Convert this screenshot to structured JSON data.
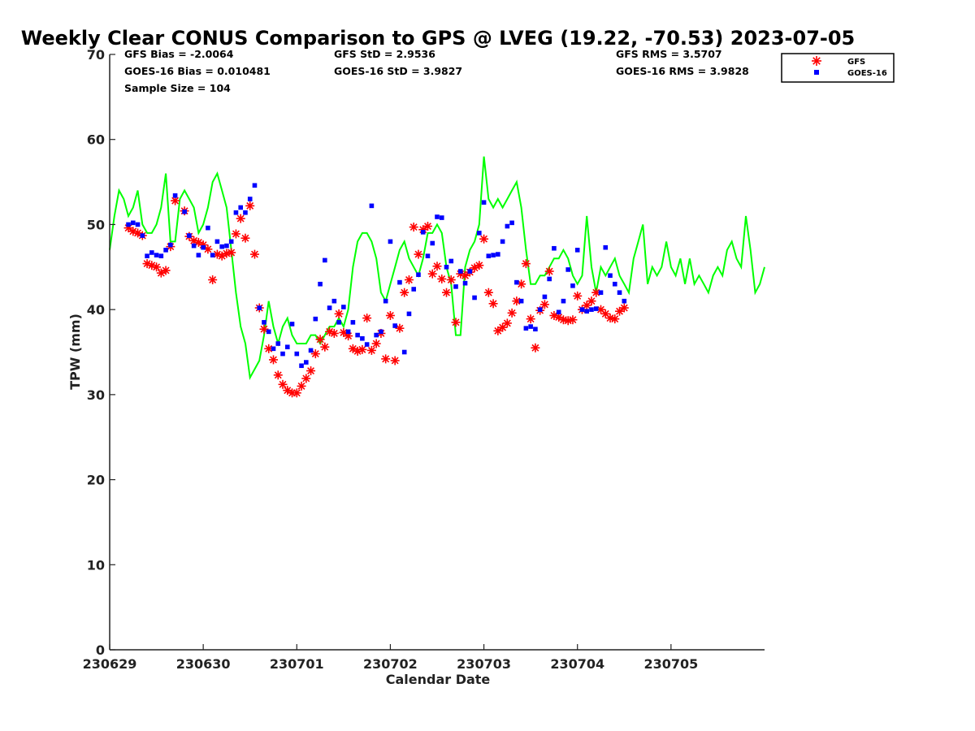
{
  "chart_data": {
    "type": "scatter",
    "title": "Weekly Clear CONUS Comparison to GPS @ LVEG (19.22, -70.53) 2023-07-05",
    "xlabel": "Calendar Date",
    "ylabel": "TPW (mm)",
    "xlim": [
      0,
      7.0
    ],
    "ylim": [
      0,
      70
    ],
    "x_ticks": [
      0,
      1,
      2,
      3,
      4,
      5,
      6
    ],
    "x_tick_labels": [
      "230629",
      "230630",
      "230701",
      "230702",
      "230703",
      "230704",
      "230705"
    ],
    "y_ticks": [
      0,
      10,
      20,
      30,
      40,
      50,
      60,
      70
    ],
    "y_tick_labels": [
      "0",
      "10",
      "20",
      "30",
      "40",
      "50",
      "60",
      "70"
    ],
    "legend_position": "top-right",
    "stats": {
      "gfs_bias": "GFS Bias = -2.0064",
      "goes_bias": "GOES-16 Bias = 0.010481",
      "sample_size": "Sample Size = 104",
      "gfs_std": "GFS StD = 2.9536",
      "goes_std": "GOES-16 StD = 3.9827",
      "gfs_rms": "GFS RMS = 3.5707",
      "goes_rms": "GOES-16 RMS = 3.9828"
    },
    "series": [
      {
        "name": "GPS",
        "kind": "line",
        "color": "#00ff00",
        "x": [
          0.0,
          0.05,
          0.1,
          0.15,
          0.2,
          0.25,
          0.3,
          0.35,
          0.4,
          0.45,
          0.5,
          0.55,
          0.6,
          0.65,
          0.7,
          0.75,
          0.8,
          0.85,
          0.9,
          0.95,
          1.0,
          1.05,
          1.1,
          1.15,
          1.2,
          1.25,
          1.3,
          1.35,
          1.4,
          1.45,
          1.5,
          1.55,
          1.6,
          1.65,
          1.7,
          1.75,
          1.8,
          1.85,
          1.9,
          1.95,
          2.0,
          2.05,
          2.1,
          2.15,
          2.2,
          2.25,
          2.3,
          2.35,
          2.4,
          2.45,
          2.5,
          2.55,
          2.6,
          2.65,
          2.7,
          2.75,
          2.8,
          2.85,
          2.9,
          2.95,
          3.0,
          3.05,
          3.1,
          3.15,
          3.2,
          3.25,
          3.3,
          3.35,
          3.4,
          3.45,
          3.5,
          3.55,
          3.6,
          3.65,
          3.7,
          3.75,
          3.8,
          3.85,
          3.9,
          3.95,
          4.0,
          4.05,
          4.1,
          4.15,
          4.2,
          4.25,
          4.3,
          4.35,
          4.4,
          4.45,
          4.5,
          4.55,
          4.6,
          4.65,
          4.7,
          4.75,
          4.8,
          4.85,
          4.9,
          4.95,
          5.0,
          5.05,
          5.1,
          5.15,
          5.2,
          5.25,
          5.3,
          5.35,
          5.4,
          5.45,
          5.5,
          5.55,
          5.6,
          5.65,
          5.7,
          5.75,
          5.8,
          5.85,
          5.9,
          5.95,
          6.0,
          6.05,
          6.1,
          6.15,
          6.2,
          6.25,
          6.3,
          6.35,
          6.4,
          6.45,
          6.5,
          6.55,
          6.6,
          6.65,
          6.7,
          6.75,
          6.8,
          6.85,
          6.9,
          6.95,
          7.0
        ],
        "values": [
          47,
          51,
          54,
          53,
          51,
          52,
          54,
          50,
          49,
          49,
          50,
          52,
          56,
          48,
          48,
          53,
          54,
          53,
          52,
          49,
          50,
          52,
          55,
          56,
          54,
          52,
          47,
          42,
          38,
          36,
          32,
          33,
          34,
          37,
          41,
          38,
          36,
          38,
          39,
          37,
          36,
          36,
          36,
          37,
          37,
          36,
          37,
          38,
          38,
          39,
          38,
          40,
          45,
          48,
          49,
          49,
          48,
          46,
          42,
          41,
          43,
          45,
          47,
          48,
          46,
          45,
          44,
          46,
          49,
          49,
          50,
          49,
          45,
          43,
          37,
          37,
          45,
          47,
          48,
          50,
          58,
          53,
          52,
          53,
          52,
          53,
          54,
          55,
          52,
          47,
          43,
          43,
          44,
          44,
          45,
          46,
          46,
          47,
          46,
          44,
          43,
          44,
          51,
          45,
          42,
          45,
          44,
          45,
          46,
          44,
          43,
          42,
          46,
          48,
          50,
          43,
          45,
          44,
          45,
          48,
          45,
          44,
          46,
          43,
          46,
          43,
          44,
          43,
          42,
          44,
          45,
          44,
          47,
          48,
          46,
          45,
          51,
          47,
          42,
          43,
          45
        ]
      },
      {
        "name": "GFS",
        "kind": "marker",
        "marker": "asterisk",
        "color": "#ff0000",
        "x": [
          0.2,
          0.25,
          0.3,
          0.35,
          0.4,
          0.45,
          0.5,
          0.55,
          0.6,
          0.65,
          0.7,
          0.8,
          0.85,
          0.9,
          0.95,
          1.0,
          1.05,
          1.1,
          1.15,
          1.2,
          1.25,
          1.3,
          1.35,
          1.4,
          1.45,
          1.5,
          1.55,
          1.6,
          1.65,
          1.7,
          1.75,
          1.8,
          1.85,
          1.9,
          1.95,
          2.0,
          2.05,
          2.1,
          2.15,
          2.2,
          2.25,
          2.3,
          2.35,
          2.4,
          2.45,
          2.5,
          2.55,
          2.6,
          2.65,
          2.7,
          2.75,
          2.8,
          2.85,
          2.9,
          2.95,
          3.0,
          3.05,
          3.1,
          3.15,
          3.2,
          3.25,
          3.3,
          3.35,
          3.4,
          3.45,
          3.5,
          3.55,
          3.6,
          3.65,
          3.7,
          3.75,
          3.8,
          3.85,
          3.9,
          3.95,
          4.0,
          4.05,
          4.1,
          4.15,
          4.2,
          4.25,
          4.3,
          4.35,
          4.4,
          4.45,
          4.5,
          4.55,
          4.6,
          4.65,
          4.7,
          4.75,
          4.8,
          4.85,
          4.9,
          4.95,
          5.0,
          5.05,
          5.1,
          5.15,
          5.2,
          5.25,
          5.3,
          5.35,
          5.4,
          5.45,
          5.5
        ],
        "values": [
          49.6,
          49.2,
          49.0,
          48.7,
          45.4,
          45.2,
          45.0,
          44.3,
          44.6,
          47.4,
          52.8,
          51.6,
          48.6,
          48.1,
          47.9,
          47.6,
          47.1,
          43.5,
          46.5,
          46.3,
          46.6,
          46.7,
          48.9,
          50.7,
          48.4,
          52.2,
          46.5,
          40.2,
          37.7,
          35.4,
          34.1,
          32.3,
          31.2,
          30.5,
          30.2,
          30.2,
          31.0,
          31.9,
          32.8,
          34.8,
          36.5,
          35.6,
          37.4,
          37.2,
          39.5,
          37.3,
          36.9,
          35.4,
          35.1,
          35.3,
          39.0,
          35.2,
          36.0,
          37.2,
          34.2,
          39.3,
          34.0,
          37.8,
          42.0,
          43.5,
          49.7,
          46.5,
          49.4,
          49.8,
          44.2,
          45.1,
          43.6,
          42.0,
          43.5,
          38.5,
          44.2,
          44.0,
          44.4,
          44.9,
          45.2,
          48.3,
          42.0,
          40.7,
          37.5,
          37.9,
          38.4,
          39.6,
          41.0,
          43.0,
          45.4,
          38.9,
          35.5,
          39.9,
          40.6,
          44.5,
          39.3,
          39.1,
          38.8,
          38.7,
          38.8,
          41.6,
          40.0,
          40.5,
          41.0,
          42.0,
          40.0,
          39.5,
          39.0,
          38.9,
          39.8,
          40.2
        ]
      },
      {
        "name": "GOES-16",
        "kind": "marker",
        "marker": "square",
        "color": "#0000ff",
        "x": [
          0.2,
          0.25,
          0.3,
          0.35,
          0.4,
          0.45,
          0.5,
          0.55,
          0.6,
          0.65,
          0.7,
          0.8,
          0.85,
          0.9,
          0.95,
          1.0,
          1.05,
          1.1,
          1.15,
          1.2,
          1.25,
          1.3,
          1.35,
          1.4,
          1.45,
          1.5,
          1.55,
          1.6,
          1.65,
          1.7,
          1.75,
          1.8,
          1.85,
          1.9,
          1.95,
          2.0,
          2.05,
          2.1,
          2.15,
          2.2,
          2.25,
          2.3,
          2.35,
          2.4,
          2.45,
          2.5,
          2.55,
          2.6,
          2.65,
          2.7,
          2.75,
          2.8,
          2.85,
          2.9,
          2.95,
          3.0,
          3.05,
          3.1,
          3.15,
          3.2,
          3.25,
          3.3,
          3.35,
          3.4,
          3.45,
          3.5,
          3.55,
          3.6,
          3.65,
          3.7,
          3.75,
          3.8,
          3.85,
          3.9,
          3.95,
          4.0,
          4.05,
          4.1,
          4.15,
          4.2,
          4.25,
          4.3,
          4.35,
          4.4,
          4.45,
          4.5,
          4.55,
          4.6,
          4.65,
          4.7,
          4.75,
          4.8,
          4.85,
          4.9,
          4.95,
          5.0,
          5.05,
          5.1,
          5.15,
          5.2,
          5.25,
          5.3,
          5.35,
          5.4,
          5.45,
          5.5
        ],
        "values": [
          50.0,
          50.2,
          50.0,
          48.7,
          46.3,
          46.7,
          46.4,
          46.3,
          47.0,
          47.6,
          53.4,
          51.5,
          48.7,
          47.5,
          46.4,
          47.3,
          49.6,
          46.4,
          48.0,
          47.4,
          47.5,
          48.0,
          51.4,
          52.0,
          51.4,
          53.0,
          54.6,
          40.2,
          38.5,
          37.4,
          35.4,
          36.0,
          34.8,
          35.6,
          38.3,
          34.8,
          33.4,
          33.8,
          35.2,
          38.9,
          43.0,
          45.8,
          40.2,
          41.0,
          38.5,
          40.3,
          37.4,
          38.5,
          37.0,
          36.6,
          35.9,
          52.2,
          37.0,
          37.4,
          41.0,
          48.0,
          38.1,
          43.2,
          35.0,
          39.5,
          42.4,
          44.1,
          49.1,
          46.3,
          47.8,
          50.9,
          50.8,
          45.0,
          45.7,
          42.7,
          44.5,
          43.1,
          44.5,
          41.4,
          49.0,
          52.6,
          46.3,
          46.4,
          46.5,
          48.0,
          49.8,
          50.2,
          43.2,
          41.0,
          37.8,
          38.0,
          37.7,
          40.0,
          41.5,
          43.6,
          47.2,
          39.7,
          41.0,
          44.7,
          42.8,
          47.0,
          40.0,
          39.8,
          40.0,
          40.1,
          42.0,
          47.3,
          44.0,
          43.0,
          42.0,
          41.0
        ]
      }
    ]
  }
}
